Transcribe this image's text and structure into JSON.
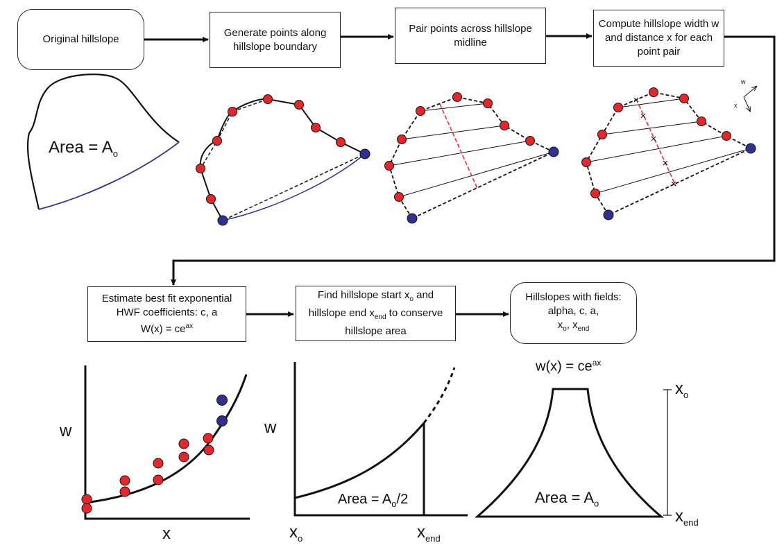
{
  "steps": {
    "original": "Original hillslope",
    "generate": "Generate points along hillslope boundary",
    "pair": "Pair points across hillslope midline",
    "compute": "Compute hillslope width w and distance x for each point pair",
    "estimate_l1": "Estimate best fit exponential HWF  coefficients: c, a",
    "estimate_l2": "W(x) = ce",
    "estimate_sup": "ax",
    "find_a": "Find hillslope start x",
    "find_a_sub": "o",
    "find_b": " and hillslope end x",
    "find_b_sub": "end",
    "find_c": "  to conserve hillslope area",
    "result_l1": "Hillslopes with fields:",
    "result_l2": "alpha, c, a,",
    "result_x": "x",
    "result_x_sub": "o",
    "result_sep": ", x",
    "result_end_sub": "end"
  },
  "labels": {
    "area_main": "Area = A",
    "area_sub": "o",
    "area_half_main": "Area = A",
    "area_half_sub": "o",
    "area_half_tail": "/2",
    "area_final_main": "Area = A",
    "area_final_sub": "o",
    "w": "w",
    "x": "x",
    "x_o": "x",
    "x_o_sub": "o",
    "x_end": "x",
    "x_end_sub": "end",
    "formula": "w(x) = ce",
    "formula_sup": "ax",
    "axis_w_small": "w",
    "axis_x_small": "x",
    "right_xo": "x",
    "right_xo_sub": "o",
    "right_xend": "x",
    "right_xend_sub": "end"
  },
  "colors": {
    "red_point": "#e8262a",
    "blue_point": "#2e3192",
    "blue_edge": "#2e3192",
    "midline": "#e8262a",
    "ink": "#111111"
  },
  "icons": [
    "red-point-icon",
    "blue-point-icon",
    "arrow-icon"
  ]
}
